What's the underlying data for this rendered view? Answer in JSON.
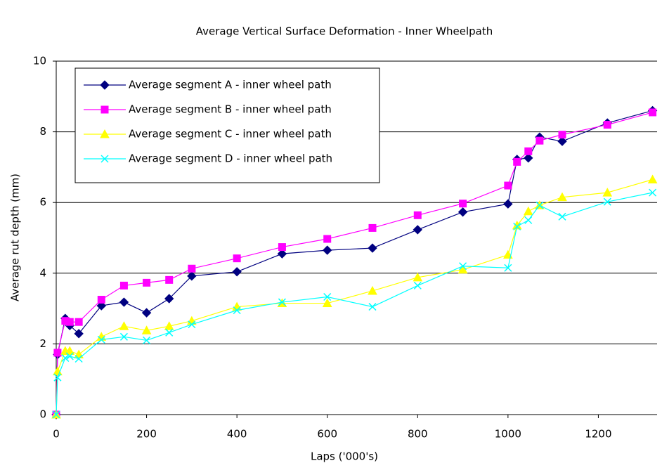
{
  "chart_data": {
    "type": "line",
    "title": "Average Vertical Surface Deformation - Inner Wheelpath",
    "x_label": "Laps ('000's)",
    "y_label": "Average rut depth (mm)",
    "x": [
      0,
      3,
      20,
      30,
      50,
      100,
      150,
      200,
      250,
      300,
      400,
      500,
      600,
      700,
      800,
      900,
      1000,
      1020,
      1045,
      1070,
      1120,
      1220,
      1320
    ],
    "series": [
      {
        "name": "Average segment A - inner wheel path",
        "color": "#000080",
        "marker": "diamond",
        "values": [
          0,
          1.7,
          2.72,
          2.52,
          2.29,
          3.08,
          3.18,
          2.88,
          3.28,
          3.92,
          4.04,
          4.55,
          4.65,
          4.71,
          5.23,
          5.73,
          5.96,
          7.22,
          7.26,
          7.85,
          7.73,
          8.25,
          8.6
        ]
      },
      {
        "name": "Average segment B - inner wheel path",
        "color": "#ff00ff",
        "marker": "square",
        "values": [
          0,
          1.75,
          2.65,
          2.62,
          2.62,
          3.25,
          3.65,
          3.73,
          3.81,
          4.13,
          4.42,
          4.74,
          4.97,
          5.28,
          5.64,
          5.97,
          6.48,
          7.15,
          7.45,
          7.75,
          7.92,
          8.2,
          8.55
        ]
      },
      {
        "name": "Average segment C - inner wheel path",
        "color": "#ffff00",
        "marker": "triangle",
        "values": [
          0,
          1.22,
          1.8,
          1.8,
          1.7,
          2.2,
          2.5,
          2.38,
          2.5,
          2.65,
          3.05,
          3.15,
          3.15,
          3.5,
          3.88,
          4.1,
          4.52,
          5.35,
          5.75,
          5.92,
          6.15,
          6.28,
          6.65
        ]
      },
      {
        "name": "Average segment D - inner wheel path",
        "color": "#00ffff",
        "marker": "x",
        "values": [
          0,
          1.05,
          1.6,
          1.65,
          1.58,
          2.12,
          2.2,
          2.1,
          2.32,
          2.55,
          2.95,
          3.18,
          3.33,
          3.05,
          3.65,
          4.2,
          4.15,
          5.32,
          5.5,
          5.92,
          5.6,
          6.02,
          6.28
        ]
      }
    ],
    "xlim": [
      0,
      1330
    ],
    "xticks": [
      0,
      200,
      400,
      600,
      800,
      1000,
      1200
    ],
    "ylim": [
      0,
      10
    ],
    "yticks": [
      0,
      2,
      4,
      6,
      8,
      10
    ],
    "grid": true,
    "legend": "top-left"
  }
}
